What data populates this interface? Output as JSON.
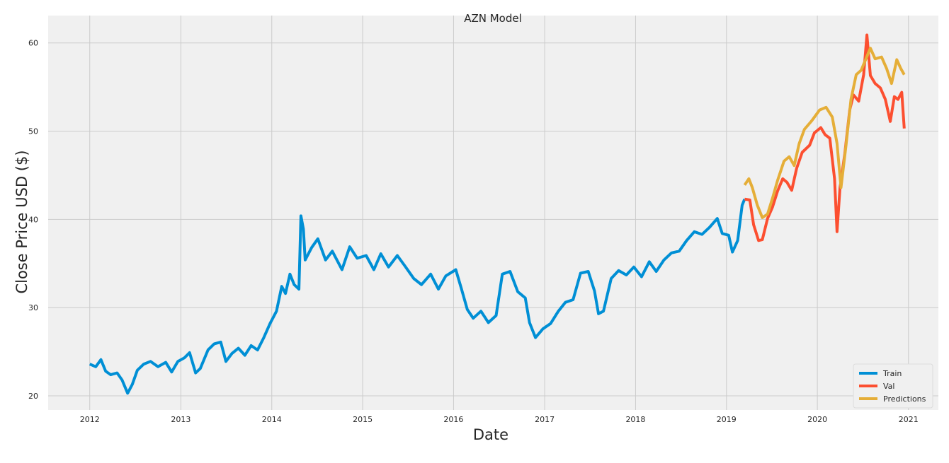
{
  "chart_data": {
    "type": "line",
    "title": "AZN Model",
    "xlabel": "Date",
    "ylabel": "Close Price USD ($)",
    "xlim": [
      "2011-07-18",
      "2021-05-01"
    ],
    "ylim": [
      18.4,
      63.1
    ],
    "x_ticks": [
      "2012",
      "2013",
      "2014",
      "2015",
      "2016",
      "2017",
      "2018",
      "2019",
      "2020",
      "2021"
    ],
    "y_ticks": [
      20,
      30,
      40,
      50,
      60
    ],
    "grid": true,
    "legend_position": "bottom-right",
    "series": [
      {
        "name": "Train",
        "color": "#008fd5",
        "points": [
          [
            "2012-01-01",
            23.6
          ],
          [
            "2012-01-25",
            23.3
          ],
          [
            "2012-02-15",
            24.1
          ],
          [
            "2012-03-05",
            22.8
          ],
          [
            "2012-03-25",
            22.4
          ],
          [
            "2012-04-20",
            22.6
          ],
          [
            "2012-05-10",
            21.8
          ],
          [
            "2012-06-01",
            20.3
          ],
          [
            "2012-06-20",
            21.3
          ],
          [
            "2012-07-10",
            22.9
          ],
          [
            "2012-08-05",
            23.6
          ],
          [
            "2012-09-01",
            23.9
          ],
          [
            "2012-10-01",
            23.3
          ],
          [
            "2012-11-01",
            23.8
          ],
          [
            "2012-11-25",
            22.7
          ],
          [
            "2012-12-20",
            23.9
          ],
          [
            "2013-01-15",
            24.3
          ],
          [
            "2013-02-05",
            24.9
          ],
          [
            "2013-03-01",
            22.6
          ],
          [
            "2013-03-20",
            23.1
          ],
          [
            "2013-04-20",
            25.2
          ],
          [
            "2013-05-15",
            25.9
          ],
          [
            "2013-06-10",
            26.1
          ],
          [
            "2013-07-01",
            23.9
          ],
          [
            "2013-07-25",
            24.8
          ],
          [
            "2013-08-20",
            25.4
          ],
          [
            "2013-09-15",
            24.6
          ],
          [
            "2013-10-10",
            25.7
          ],
          [
            "2013-11-05",
            25.2
          ],
          [
            "2013-11-30",
            26.6
          ],
          [
            "2013-12-25",
            28.2
          ],
          [
            "2014-01-20",
            29.6
          ],
          [
            "2014-02-10",
            32.4
          ],
          [
            "2014-02-25",
            31.6
          ],
          [
            "2014-03-15",
            33.8
          ],
          [
            "2014-04-01",
            32.6
          ],
          [
            "2014-04-20",
            32.1
          ],
          [
            "2014-04-28",
            40.4
          ],
          [
            "2014-05-08",
            38.9
          ],
          [
            "2014-05-15",
            35.4
          ],
          [
            "2014-06-10",
            36.8
          ],
          [
            "2014-07-05",
            37.8
          ],
          [
            "2014-08-05",
            35.4
          ],
          [
            "2014-09-01",
            36.4
          ],
          [
            "2014-10-10",
            34.3
          ],
          [
            "2014-11-10",
            36.9
          ],
          [
            "2014-12-10",
            35.6
          ],
          [
            "2015-01-15",
            35.9
          ],
          [
            "2015-02-15",
            34.3
          ],
          [
            "2015-03-15",
            36.1
          ],
          [
            "2015-04-15",
            34.6
          ],
          [
            "2015-05-20",
            35.9
          ],
          [
            "2015-06-20",
            34.7
          ],
          [
            "2015-07-25",
            33.3
          ],
          [
            "2015-08-25",
            32.6
          ],
          [
            "2015-10-01",
            33.8
          ],
          [
            "2015-11-01",
            32.1
          ],
          [
            "2015-12-01",
            33.6
          ],
          [
            "2016-01-10",
            34.3
          ],
          [
            "2016-02-01",
            32.2
          ],
          [
            "2016-02-25",
            29.8
          ],
          [
            "2016-03-20",
            28.8
          ],
          [
            "2016-04-20",
            29.6
          ],
          [
            "2016-05-20",
            28.3
          ],
          [
            "2016-06-20",
            29.1
          ],
          [
            "2016-07-15",
            33.8
          ],
          [
            "2016-08-15",
            34.1
          ],
          [
            "2016-09-15",
            31.8
          ],
          [
            "2016-10-15",
            31.1
          ],
          [
            "2016-11-01",
            28.3
          ],
          [
            "2016-11-25",
            26.6
          ],
          [
            "2016-12-25",
            27.6
          ],
          [
            "2017-01-25",
            28.2
          ],
          [
            "2017-02-25",
            29.6
          ],
          [
            "2017-03-25",
            30.6
          ],
          [
            "2017-04-25",
            30.9
          ],
          [
            "2017-05-25",
            33.9
          ],
          [
            "2017-06-25",
            34.1
          ],
          [
            "2017-07-20",
            31.9
          ],
          [
            "2017-08-05",
            29.3
          ],
          [
            "2017-08-25",
            29.6
          ],
          [
            "2017-09-25",
            33.3
          ],
          [
            "2017-10-25",
            34.2
          ],
          [
            "2017-11-25",
            33.7
          ],
          [
            "2017-12-25",
            34.6
          ],
          [
            "2018-01-25",
            33.5
          ],
          [
            "2018-02-25",
            35.2
          ],
          [
            "2018-03-25",
            34.1
          ],
          [
            "2018-04-25",
            35.4
          ],
          [
            "2018-05-25",
            36.2
          ],
          [
            "2018-06-25",
            36.4
          ],
          [
            "2018-07-25",
            37.6
          ],
          [
            "2018-08-25",
            38.6
          ],
          [
            "2018-09-25",
            38.3
          ],
          [
            "2018-10-25",
            39.1
          ],
          [
            "2018-11-25",
            40.1
          ],
          [
            "2018-12-15",
            38.4
          ],
          [
            "2019-01-10",
            38.2
          ],
          [
            "2019-01-25",
            36.3
          ],
          [
            "2019-02-15",
            37.6
          ],
          [
            "2019-03-05",
            41.6
          ],
          [
            "2019-03-15",
            42.3
          ]
        ]
      },
      {
        "name": "Val",
        "color": "#fc4f30",
        "points": [
          [
            "2019-03-15",
            42.3
          ],
          [
            "2019-04-05",
            42.2
          ],
          [
            "2019-04-20",
            39.4
          ],
          [
            "2019-05-10",
            37.6
          ],
          [
            "2019-05-25",
            37.7
          ],
          [
            "2019-06-15",
            40.1
          ],
          [
            "2019-07-05",
            41.4
          ],
          [
            "2019-07-25",
            43.2
          ],
          [
            "2019-08-15",
            44.6
          ],
          [
            "2019-09-01",
            44.2
          ],
          [
            "2019-09-20",
            43.3
          ],
          [
            "2019-10-10",
            45.8
          ],
          [
            "2019-11-01",
            47.6
          ],
          [
            "2019-12-01",
            48.4
          ],
          [
            "2019-12-20",
            49.8
          ],
          [
            "2020-01-15",
            50.4
          ],
          [
            "2020-02-01",
            49.6
          ],
          [
            "2020-02-20",
            49.2
          ],
          [
            "2020-03-10",
            44.6
          ],
          [
            "2020-03-20",
            38.6
          ],
          [
            "2020-04-01",
            43.6
          ],
          [
            "2020-04-20",
            47.4
          ],
          [
            "2020-05-10",
            52.4
          ],
          [
            "2020-05-25",
            54.1
          ],
          [
            "2020-06-15",
            53.4
          ],
          [
            "2020-07-05",
            56.4
          ],
          [
            "2020-07-18",
            60.9
          ],
          [
            "2020-08-01",
            56.3
          ],
          [
            "2020-08-20",
            55.4
          ],
          [
            "2020-09-10",
            54.9
          ],
          [
            "2020-09-30",
            53.6
          ],
          [
            "2020-10-20",
            51.1
          ],
          [
            "2020-11-05",
            53.9
          ],
          [
            "2020-11-20",
            53.6
          ],
          [
            "2020-12-05",
            54.4
          ],
          [
            "2020-12-15",
            50.3
          ]
        ]
      },
      {
        "name": "Predictions",
        "color": "#e5ae38",
        "points": [
          [
            "2019-03-15",
            43.9
          ],
          [
            "2019-04-01",
            44.6
          ],
          [
            "2019-04-15",
            43.6
          ],
          [
            "2019-05-05",
            41.6
          ],
          [
            "2019-05-25",
            40.2
          ],
          [
            "2019-06-15",
            40.6
          ],
          [
            "2019-07-05",
            42.4
          ],
          [
            "2019-07-25",
            44.4
          ],
          [
            "2019-08-20",
            46.6
          ],
          [
            "2019-09-10",
            47.1
          ],
          [
            "2019-09-30",
            46.1
          ],
          [
            "2019-10-20",
            48.6
          ],
          [
            "2019-11-10",
            50.2
          ],
          [
            "2019-12-10",
            51.2
          ],
          [
            "2020-01-10",
            52.4
          ],
          [
            "2020-02-05",
            52.7
          ],
          [
            "2020-03-01",
            51.6
          ],
          [
            "2020-03-20",
            48.6
          ],
          [
            "2020-04-05",
            43.6
          ],
          [
            "2020-04-25",
            48.4
          ],
          [
            "2020-05-15",
            53.6
          ],
          [
            "2020-06-05",
            56.4
          ],
          [
            "2020-06-25",
            56.9
          ],
          [
            "2020-07-20",
            58.6
          ],
          [
            "2020-08-01",
            59.4
          ],
          [
            "2020-08-20",
            58.2
          ],
          [
            "2020-09-15",
            58.4
          ],
          [
            "2020-10-05",
            57.1
          ],
          [
            "2020-10-25",
            55.4
          ],
          [
            "2020-11-15",
            58.1
          ],
          [
            "2020-12-01",
            57.1
          ],
          [
            "2020-12-15",
            56.4
          ]
        ]
      }
    ]
  }
}
